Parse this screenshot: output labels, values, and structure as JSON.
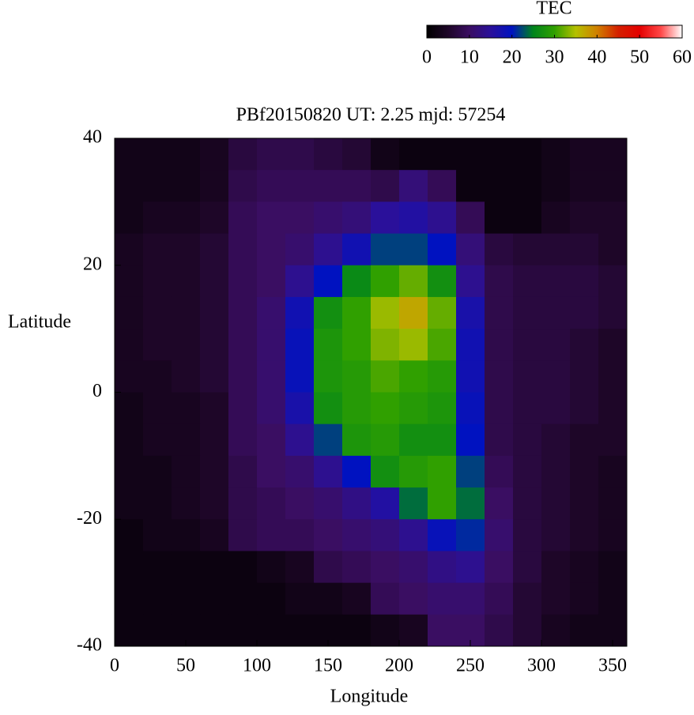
{
  "chart_data": {
    "type": "heatmap",
    "title": "PBf20150820  UT: 2.25  mjd: 57254",
    "x_label": "Longitude",
    "y_label": "Latitude",
    "x": [
      10,
      30,
      50,
      70,
      90,
      110,
      130,
      150,
      170,
      190,
      210,
      230,
      250,
      270,
      290,
      310,
      330,
      350
    ],
    "y": [
      37.5,
      32.5,
      27.5,
      22.5,
      17.5,
      12.5,
      7.5,
      2.5,
      -2.5,
      -7.5,
      -12.5,
      -17.5,
      -22.5,
      -27.5,
      -32.5,
      -37.5
    ],
    "values": [
      [
        3,
        3,
        3,
        4,
        7,
        8,
        8,
        7,
        6,
        3,
        2,
        2,
        2,
        2,
        2,
        3,
        4,
        4
      ],
      [
        3,
        3,
        3,
        4,
        8,
        9,
        9,
        9,
        9,
        8,
        12,
        9,
        2,
        2,
        2,
        3,
        4,
        4
      ],
      [
        3,
        4,
        4,
        5,
        9,
        10,
        10,
        11,
        12,
        15,
        16,
        14,
        9,
        2,
        2,
        4,
        5,
        5
      ],
      [
        4,
        5,
        5,
        6,
        9,
        10,
        11,
        14,
        18,
        22,
        22,
        20,
        12,
        7,
        6,
        6,
        6,
        5
      ],
      [
        4,
        5,
        5,
        6,
        9,
        10,
        14,
        20,
        26,
        30,
        32,
        27,
        14,
        8,
        7,
        7,
        7,
        6
      ],
      [
        4,
        5,
        5,
        6,
        9,
        11,
        18,
        27,
        30,
        34,
        37,
        32,
        17,
        8,
        7,
        7,
        7,
        6
      ],
      [
        4,
        5,
        5,
        6,
        9,
        11,
        19,
        28,
        30,
        33,
        34,
        31,
        18,
        8,
        7,
        7,
        6,
        5
      ],
      [
        4,
        4,
        5,
        6,
        9,
        11,
        19,
        28,
        29,
        31,
        30,
        29,
        18,
        8,
        7,
        7,
        6,
        5
      ],
      [
        3,
        4,
        4,
        5,
        9,
        11,
        17,
        27,
        29,
        30,
        29,
        28,
        19,
        8,
        7,
        7,
        6,
        5
      ],
      [
        3,
        4,
        4,
        5,
        9,
        10,
        14,
        22,
        28,
        29,
        27,
        27,
        20,
        8,
        7,
        6,
        5,
        5
      ],
      [
        3,
        3,
        4,
        5,
        8,
        10,
        11,
        14,
        20,
        27,
        29,
        30,
        22,
        9,
        7,
        6,
        5,
        4
      ],
      [
        3,
        3,
        4,
        5,
        8,
        9,
        10,
        11,
        13,
        16,
        24,
        30,
        24,
        10,
        7,
        6,
        5,
        4
      ],
      [
        2,
        3,
        3,
        4,
        8,
        9,
        9,
        10,
        11,
        12,
        14,
        19,
        21,
        11,
        7,
        6,
        5,
        4
      ],
      [
        2,
        2,
        2,
        2,
        2,
        3,
        4,
        8,
        9,
        10,
        11,
        13,
        14,
        10,
        7,
        5,
        4,
        3
      ],
      [
        2,
        2,
        2,
        2,
        2,
        2,
        3,
        3,
        4,
        9,
        10,
        11,
        11,
        9,
        6,
        5,
        4,
        3
      ],
      [
        2,
        2,
        2,
        2,
        2,
        2,
        2,
        2,
        2,
        3,
        4,
        10,
        10,
        8,
        6,
        4,
        3,
        3
      ]
    ],
    "xlim": [
      0,
      360
    ],
    "xticks": [
      0,
      50,
      100,
      150,
      200,
      250,
      300,
      350
    ],
    "ylim": [
      -40,
      40
    ],
    "yticks": [
      -40,
      -20,
      0,
      20,
      40
    ],
    "colorbar": {
      "label": "TEC",
      "lim": [
        0,
        60
      ],
      "ticks": [
        0,
        10,
        20,
        30,
        40,
        50,
        60
      ]
    },
    "colormap": [
      "#000000",
      "#1e0628",
      "#3a0e62",
      "#2a109a",
      "#0012c0",
      "#00841c",
      "#30a000",
      "#b4c000",
      "#d08000",
      "#d42000",
      "#e40000",
      "#ff4848",
      "#ffffff"
    ]
  }
}
